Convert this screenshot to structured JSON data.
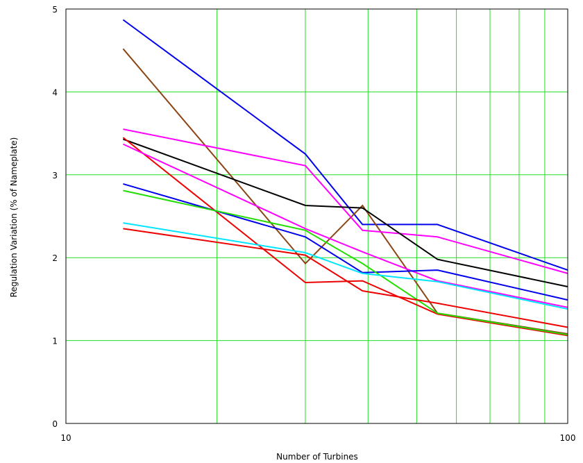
{
  "chart_data": {
    "type": "line",
    "title": "",
    "xlabel": "Number of Turbines",
    "ylabel": "Regulation Variation (% of Nameplate)",
    "x_scale": "log",
    "xlim": [
      10,
      100
    ],
    "ylim": [
      0,
      5
    ],
    "x_tick_labels": [
      "10",
      "100"
    ],
    "x_grid": [
      20,
      30,
      40,
      50,
      60,
      70,
      80,
      90
    ],
    "y_ticks": [
      0,
      1,
      2,
      3,
      4,
      5
    ],
    "grid": true,
    "grid_color": "#22dd22",
    "legend": "none",
    "series": [
      {
        "color": "#0000ee",
        "points": [
          [
            13,
            4.87
          ],
          [
            30,
            3.25
          ],
          [
            39,
            2.4
          ],
          [
            55,
            2.4
          ],
          [
            100,
            1.85
          ]
        ]
      },
      {
        "color": "#8b4513",
        "points": [
          [
            13,
            4.52
          ],
          [
            30,
            1.93
          ],
          [
            39,
            2.63
          ],
          [
            55,
            1.33
          ],
          [
            100,
            1.08
          ]
        ]
      },
      {
        "color": "#ff00ff",
        "points": [
          [
            13,
            3.55
          ],
          [
            30,
            3.11
          ],
          [
            39,
            2.33
          ],
          [
            55,
            2.25
          ],
          [
            100,
            1.81
          ]
        ]
      },
      {
        "color": "#000000",
        "points": [
          [
            13,
            3.43
          ],
          [
            30,
            2.63
          ],
          [
            39,
            2.6
          ],
          [
            55,
            1.98
          ],
          [
            100,
            1.65
          ]
        ]
      },
      {
        "color": "#ee0000",
        "points": [
          [
            13,
            3.45
          ],
          [
            30,
            1.7
          ],
          [
            39,
            1.72
          ],
          [
            55,
            1.32
          ],
          [
            100,
            1.06
          ]
        ]
      },
      {
        "color": "#ff00ff",
        "points": [
          [
            13,
            3.37
          ],
          [
            30,
            2.35
          ],
          [
            39,
            2.07
          ],
          [
            55,
            1.72
          ],
          [
            100,
            1.4
          ]
        ]
      },
      {
        "color": "#0000ee",
        "points": [
          [
            13,
            2.89
          ],
          [
            30,
            2.25
          ],
          [
            39,
            1.82
          ],
          [
            55,
            1.85
          ],
          [
            100,
            1.49
          ]
        ]
      },
      {
        "color": "#22dd00",
        "points": [
          [
            13,
            2.81
          ],
          [
            30,
            2.33
          ],
          [
            39,
            1.93
          ],
          [
            55,
            1.33
          ],
          [
            100,
            1.07
          ]
        ]
      },
      {
        "color": "#00e5ff",
        "points": [
          [
            13,
            2.42
          ],
          [
            30,
            2.06
          ],
          [
            39,
            1.81
          ],
          [
            55,
            1.71
          ],
          [
            100,
            1.38
          ]
        ]
      },
      {
        "color": "#ee0000",
        "points": [
          [
            13,
            2.35
          ],
          [
            30,
            2.03
          ],
          [
            39,
            1.6
          ],
          [
            55,
            1.45
          ],
          [
            100,
            1.16
          ]
        ]
      }
    ]
  }
}
